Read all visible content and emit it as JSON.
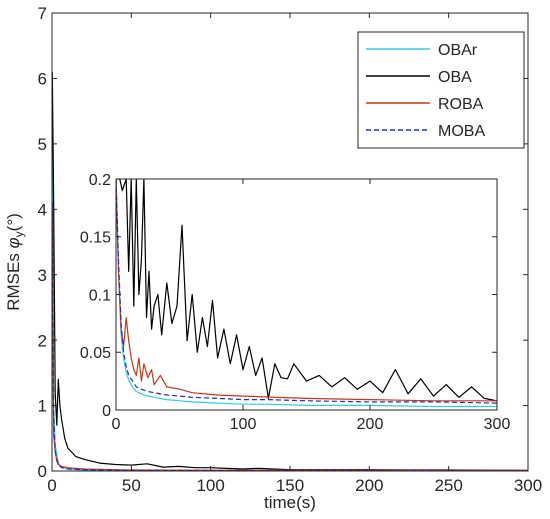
{
  "chart_data": [
    {
      "type": "line",
      "role": "main",
      "xlabel": "time(s)",
      "ylabel_prefix": "RMSEs",
      "ylabel_symbol": "φ",
      "ylabel_sub": "y",
      "ylabel_unit": "(°)",
      "xlim": [
        0,
        300
      ],
      "ylim": [
        0,
        7
      ],
      "xticks": [
        "0",
        "50",
        "100",
        "150",
        "200",
        "250",
        "300"
      ],
      "yticks": [
        "0",
        "1",
        "2",
        "3",
        "4",
        "5",
        "6",
        "7"
      ],
      "grid": false,
      "legend_position": "top-right",
      "series": [
        {
          "name": "OBAr",
          "color": "#33ccdd",
          "dash": "solid",
          "x": [
            0.2,
            1,
            2,
            4,
            6,
            10,
            20,
            40,
            80,
            150,
            300
          ],
          "y": [
            5.6,
            1.0,
            0.4,
            0.12,
            0.06,
            0.03,
            0.015,
            0.01,
            0.006,
            0.004,
            0.003
          ]
        },
        {
          "name": "OBA",
          "color": "#000000",
          "dash": "solid",
          "x": [
            0.2,
            1,
            2,
            3,
            4,
            5,
            6,
            8,
            10,
            12,
            15,
            20,
            25,
            30,
            40,
            50,
            60,
            70,
            80,
            90,
            100,
            110,
            120,
            130,
            150,
            175,
            200,
            225,
            250,
            275,
            300
          ],
          "y": [
            6.1,
            4.2,
            1.2,
            0.7,
            1.4,
            1.0,
            0.8,
            0.5,
            0.35,
            0.3,
            0.22,
            0.18,
            0.15,
            0.12,
            0.1,
            0.09,
            0.11,
            0.06,
            0.07,
            0.05,
            0.05,
            0.04,
            0.03,
            0.04,
            0.02,
            0.02,
            0.02,
            0.015,
            0.015,
            0.012,
            0.01
          ]
        },
        {
          "name": "ROBA",
          "color": "#c0391b",
          "dash": "solid",
          "x": [
            0.2,
            1,
            2,
            3,
            4,
            6,
            10,
            15,
            20,
            30,
            50,
            100,
            200,
            300
          ],
          "y": [
            4.0,
            0.55,
            0.3,
            0.15,
            0.1,
            0.07,
            0.05,
            0.04,
            0.03,
            0.025,
            0.015,
            0.012,
            0.01,
            0.008
          ]
        },
        {
          "name": "MOBA",
          "color": "#2a2ab8",
          "dash": "dashed",
          "x": [
            0.2,
            1,
            2,
            4,
            6,
            10,
            20,
            40,
            80,
            150,
            300
          ],
          "y": [
            4.1,
            0.9,
            0.3,
            0.1,
            0.05,
            0.03,
            0.02,
            0.012,
            0.008,
            0.006,
            0.005
          ]
        }
      ]
    },
    {
      "type": "line",
      "role": "inset",
      "xlim": [
        0,
        300
      ],
      "ylim": [
        0,
        0.2
      ],
      "xticks": [
        "0",
        "100",
        "200",
        "300"
      ],
      "yticks": [
        "0",
        "0.05",
        "0.1",
        "0.15",
        "0.2"
      ],
      "grid": false,
      "series": [
        {
          "name": "OBAr",
          "color": "#33ccdd",
          "dash": "solid",
          "x": [
            0,
            2,
            4,
            6,
            8,
            10,
            13,
            16,
            20,
            25,
            30,
            40,
            50,
            60,
            80,
            100,
            120,
            150,
            200,
            250,
            300
          ],
          "y": [
            0.2,
            0.12,
            0.065,
            0.045,
            0.033,
            0.026,
            0.02,
            0.016,
            0.014,
            0.012,
            0.011,
            0.009,
            0.008,
            0.007,
            0.006,
            0.005,
            0.005,
            0.004,
            0.004,
            0.003,
            0.003
          ]
        },
        {
          "name": "OBA",
          "color": "#000000",
          "dash": "solid",
          "x": [
            0,
            3,
            5,
            8,
            10,
            12,
            14,
            16,
            18,
            20,
            22,
            24,
            26,
            28,
            30,
            33,
            36,
            40,
            44,
            48,
            52,
            56,
            60,
            64,
            68,
            72,
            76,
            80,
            85,
            90,
            95,
            100,
            105,
            110,
            115,
            120,
            125,
            130,
            135,
            140,
            150,
            160,
            170,
            180,
            190,
            200,
            210,
            220,
            230,
            240,
            250,
            260,
            270,
            280,
            290,
            300
          ],
          "y": [
            0.2,
            0.2,
            0.19,
            0.2,
            0.12,
            0.2,
            0.09,
            0.2,
            0.1,
            0.13,
            0.2,
            0.08,
            0.12,
            0.07,
            0.09,
            0.1,
            0.065,
            0.11,
            0.075,
            0.09,
            0.16,
            0.06,
            0.1,
            0.05,
            0.08,
            0.055,
            0.095,
            0.045,
            0.07,
            0.04,
            0.065,
            0.035,
            0.055,
            0.03,
            0.045,
            0.01,
            0.04,
            0.028,
            0.027,
            0.04,
            0.025,
            0.03,
            0.02,
            0.028,
            0.018,
            0.025,
            0.015,
            0.035,
            0.014,
            0.027,
            0.012,
            0.022,
            0.011,
            0.02,
            0.01,
            0.008
          ]
        },
        {
          "name": "ROBA",
          "color": "#c0391b",
          "dash": "solid",
          "x": [
            0,
            2,
            4,
            6,
            8,
            10,
            12,
            14,
            16,
            18,
            20,
            22,
            25,
            28,
            30,
            35,
            40,
            50,
            60,
            80,
            100,
            150,
            200,
            250,
            300
          ],
          "y": [
            0.2,
            0.12,
            0.07,
            0.055,
            0.08,
            0.06,
            0.045,
            0.035,
            0.03,
            0.045,
            0.025,
            0.04,
            0.028,
            0.035,
            0.022,
            0.03,
            0.02,
            0.018,
            0.015,
            0.013,
            0.012,
            0.01,
            0.009,
            0.008,
            0.008
          ]
        },
        {
          "name": "MOBA",
          "color": "#2a2ab8",
          "dash": "dashed",
          "x": [
            0,
            2,
            4,
            6,
            8,
            10,
            13,
            16,
            20,
            25,
            30,
            40,
            50,
            60,
            80,
            100,
            120,
            150,
            200,
            250,
            300
          ],
          "y": [
            0.2,
            0.13,
            0.075,
            0.05,
            0.038,
            0.03,
            0.025,
            0.02,
            0.018,
            0.016,
            0.015,
            0.013,
            0.012,
            0.011,
            0.01,
            0.009,
            0.009,
            0.008,
            0.007,
            0.007,
            0.006
          ]
        }
      ]
    }
  ]
}
